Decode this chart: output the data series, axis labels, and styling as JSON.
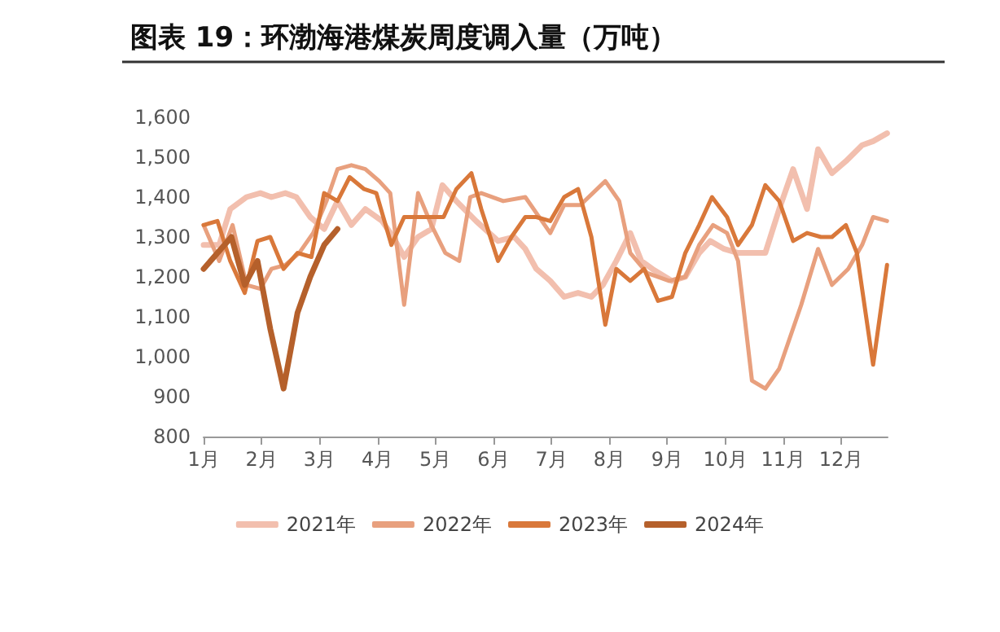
{
  "chart_data": {
    "type": "line",
    "title": "图表 19：环渤海港煤炭周度调入量（万吨）",
    "xlim": [
      1,
      12.8
    ],
    "xticks": [
      {
        "value": 1,
        "label": "1月"
      },
      {
        "value": 2,
        "label": "2月"
      },
      {
        "value": 3,
        "label": "3月"
      },
      {
        "value": 4,
        "label": "4月"
      },
      {
        "value": 5,
        "label": "5月"
      },
      {
        "value": 6,
        "label": "6月"
      },
      {
        "value": 7,
        "label": "7月"
      },
      {
        "value": 8,
        "label": "8月"
      },
      {
        "value": 9,
        "label": "9月"
      },
      {
        "value": 10,
        "label": "10月"
      },
      {
        "value": 11,
        "label": "11月"
      },
      {
        "value": 12,
        "label": "12月"
      }
    ],
    "ylim": [
      800,
      1600
    ],
    "yticks": [
      800,
      900,
      {
        "value": 1000,
        "label": "1,000"
      },
      {
        "value": 1100,
        "label": "1,100"
      },
      {
        "value": 1200,
        "label": "1,200"
      },
      {
        "value": 1300,
        "label": "1,300"
      },
      {
        "value": 1400,
        "label": "1,400"
      },
      {
        "value": 1500,
        "label": "1,500"
      },
      {
        "value": 1600,
        "label": "1,600"
      }
    ],
    "grid": false,
    "legend": "bottom",
    "marker": "none",
    "line_style": "solid",
    "series": [
      {
        "name": "2021年",
        "color": "#f2bfae",
        "x": [
          1,
          1.27,
          1.46,
          1.74,
          1.98,
          2.17,
          2.41,
          2.6,
          2.84,
          3.08,
          3.31,
          3.55,
          3.79,
          4.08,
          4.27,
          4.46,
          4.7,
          4.93,
          5.12,
          5.36,
          5.7,
          6.08,
          6.36,
          6.55,
          6.74,
          6.98,
          7.22,
          7.46,
          7.69,
          7.89,
          8.12,
          8.36,
          8.55,
          8.74,
          9.08,
          9.31,
          9.55,
          9.74,
          9.98,
          10.22,
          10.69,
          10.93,
          11.17,
          11.41,
          11.6,
          11.84,
          12.08,
          12.36,
          12.55,
          12.79
        ],
        "values": [
          1280,
          1280,
          1370,
          1400,
          1410,
          1400,
          1410,
          1400,
          1350,
          1320,
          1390,
          1330,
          1370,
          1340,
          1300,
          1250,
          1300,
          1320,
          1430,
          1390,
          1340,
          1290,
          1300,
          1270,
          1220,
          1190,
          1150,
          1160,
          1150,
          1180,
          1240,
          1310,
          1240,
          1220,
          1190,
          1200,
          1260,
          1290,
          1270,
          1260,
          1260,
          1370,
          1470,
          1370,
          1520,
          1460,
          1490,
          1530,
          1540,
          1560
        ]
      },
      {
        "name": "2022年",
        "color": "#e8a07e",
        "x": [
          1,
          1.27,
          1.5,
          1.74,
          1.98,
          2.17,
          2.41,
          2.65,
          2.89,
          3.12,
          3.31,
          3.55,
          3.79,
          4.03,
          4.22,
          4.46,
          4.7,
          4.93,
          5.17,
          5.41,
          5.6,
          5.79,
          6.17,
          6.55,
          6.98,
          7.22,
          7.5,
          7.93,
          8.17,
          8.36,
          8.65,
          9.03,
          9.31,
          9.55,
          9.79,
          10.03,
          10.22,
          10.46,
          10.69,
          10.93,
          11.31,
          11.6,
          11.84,
          12.12,
          12.36,
          12.55,
          12.79
        ],
        "values": [
          1330,
          1240,
          1330,
          1180,
          1170,
          1220,
          1230,
          1260,
          1310,
          1390,
          1470,
          1480,
          1470,
          1440,
          1410,
          1130,
          1410,
          1330,
          1260,
          1240,
          1400,
          1410,
          1390,
          1400,
          1310,
          1380,
          1380,
          1440,
          1390,
          1260,
          1210,
          1190,
          1200,
          1280,
          1330,
          1310,
          1240,
          940,
          920,
          970,
          1130,
          1270,
          1180,
          1220,
          1280,
          1350,
          1340
        ]
      },
      {
        "name": "2023年",
        "color": "#d9783a",
        "x": [
          1,
          1.24,
          1.46,
          1.71,
          1.93,
          2.15,
          2.38,
          2.62,
          2.86,
          3.08,
          3.31,
          3.52,
          3.77,
          3.98,
          4.24,
          4.46,
          4.7,
          4.93,
          5.14,
          5.36,
          5.62,
          5.79,
          6.08,
          6.31,
          6.55,
          6.74,
          6.98,
          7.22,
          7.46,
          7.69,
          7.93,
          8.12,
          8.36,
          8.6,
          8.84,
          9.08,
          9.31,
          9.55,
          9.77,
          10.03,
          10.22,
          10.46,
          10.69,
          10.93,
          11.17,
          11.41,
          11.65,
          11.84,
          12.08,
          12.27,
          12.55,
          12.79
        ],
        "values": [
          1330,
          1340,
          1240,
          1160,
          1290,
          1300,
          1220,
          1260,
          1250,
          1410,
          1390,
          1450,
          1420,
          1410,
          1280,
          1350,
          1350,
          1350,
          1350,
          1420,
          1460,
          1370,
          1240,
          1300,
          1350,
          1350,
          1340,
          1400,
          1420,
          1300,
          1080,
          1220,
          1190,
          1220,
          1140,
          1150,
          1260,
          1330,
          1400,
          1350,
          1280,
          1330,
          1430,
          1390,
          1290,
          1310,
          1300,
          1300,
          1330,
          1260,
          980,
          1230
        ]
      },
      {
        "name": "2024年",
        "color": "#b5602b",
        "x": [
          1,
          1.24,
          1.48,
          1.71,
          1.93,
          2.15,
          2.38,
          2.62,
          2.84,
          3.08,
          3.31
        ],
        "values": [
          1220,
          1260,
          1300,
          1180,
          1240,
          1070,
          920,
          1110,
          1200,
          1280,
          1320
        ]
      }
    ]
  }
}
